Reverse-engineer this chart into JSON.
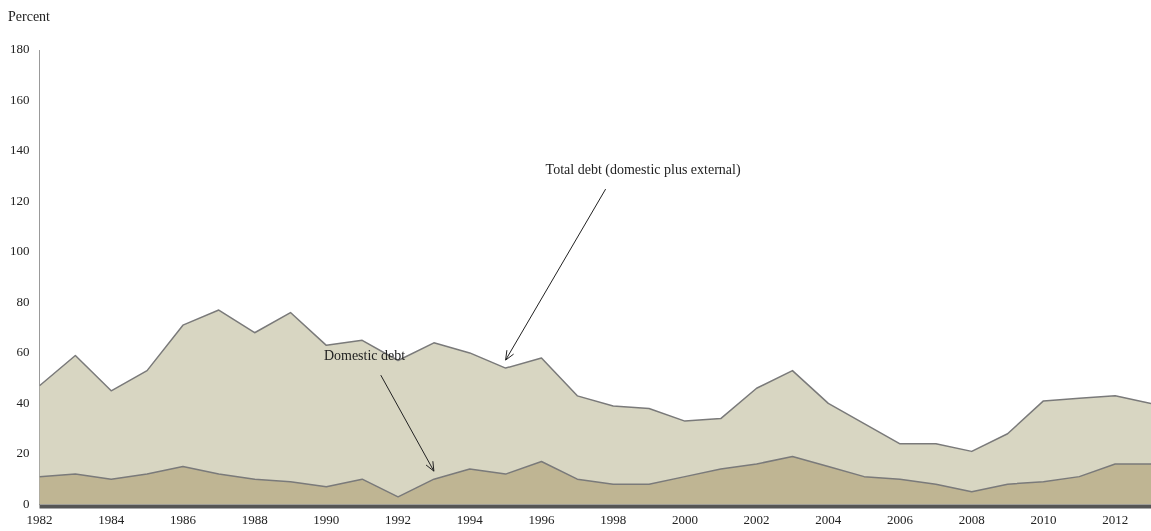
{
  "chart_data": {
    "type": "area",
    "ylabel": "Percent",
    "x": [
      1982,
      1983,
      1984,
      1985,
      1986,
      1987,
      1988,
      1989,
      1990,
      1991,
      1992,
      1993,
      1994,
      1995,
      1996,
      1997,
      1998,
      1999,
      2000,
      2001,
      2002,
      2003,
      2004,
      2005,
      2006,
      2007,
      2008,
      2009,
      2010,
      2011,
      2012,
      2013
    ],
    "series": [
      {
        "name": "Total debt (domestic plus external)",
        "color": "#d8d6c2",
        "values": [
          47,
          59,
          45,
          53,
          71,
          77,
          68,
          76,
          63,
          65,
          57,
          64,
          60,
          54,
          58,
          43,
          39,
          38,
          33,
          34,
          46,
          53,
          40,
          32,
          24,
          24,
          21,
          28,
          41,
          42,
          43,
          40
        ]
      },
      {
        "name": "Domestic debt",
        "color": "#bfb593",
        "values": [
          11,
          12,
          10,
          12,
          15,
          12,
          10,
          9,
          7,
          10,
          3,
          10,
          14,
          12,
          17,
          10,
          8,
          8,
          11,
          14,
          16,
          19,
          15,
          11,
          10,
          8,
          5,
          8,
          9,
          11,
          16,
          16
        ]
      }
    ],
    "xlim": [
      1982,
      2013
    ],
    "xticks": [
      1982,
      1984,
      1986,
      1988,
      1990,
      1992,
      1994,
      1996,
      1998,
      2000,
      2002,
      2004,
      2006,
      2008,
      2010,
      2012
    ],
    "ylim": [
      0,
      180
    ],
    "yticks": [
      0,
      20,
      40,
      60,
      80,
      100,
      120,
      140,
      160,
      180
    ],
    "grid": false,
    "legend": false
  }
}
